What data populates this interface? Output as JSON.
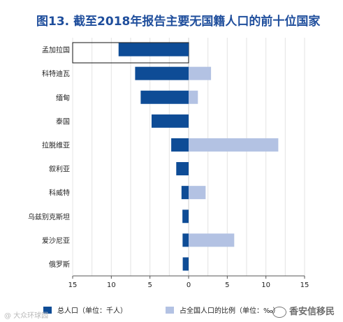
{
  "title": "图13.  截至2018年报告主要无国籍人口的前十位国家",
  "colors": {
    "series_total": "#0e4c96",
    "series_share": "#b3c2e3",
    "grid": "#e3e3e3",
    "title": "#1f4e9c"
  },
  "chart_data": {
    "type": "bar",
    "orientation": "horizontal-diverging",
    "categories": [
      "孟加拉国",
      "科特迪瓦",
      "缅甸",
      "泰国",
      "拉脱维亚",
      "叙利亚",
      "科威特",
      "乌兹别克斯坦",
      "爱沙尼亚",
      "俄罗斯"
    ],
    "series": [
      {
        "name": "总人口（单位：千人）",
        "direction": "left",
        "values": [
          906,
          692,
          620,
          479,
          225,
          160,
          92,
          80,
          78,
          76
        ]
      },
      {
        "name": "占全国人口的比例（单位：‰）",
        "direction": "right",
        "values": [
          0,
          2.9,
          1.2,
          0,
          11.6,
          0,
          2.2,
          0,
          5.9,
          0
        ]
      }
    ],
    "x_ticks": [
      "15",
      "10",
      "5",
      "0",
      "5",
      "10",
      "15"
    ],
    "xlim_left": [
      15,
      0
    ],
    "xlim_right": [
      0,
      15
    ],
    "grid": true,
    "legend_position": "bottom",
    "highlighted_category": "孟加拉国"
  },
  "watermarks": {
    "left": "@ 大众环球园",
    "right": "香安信移民"
  }
}
